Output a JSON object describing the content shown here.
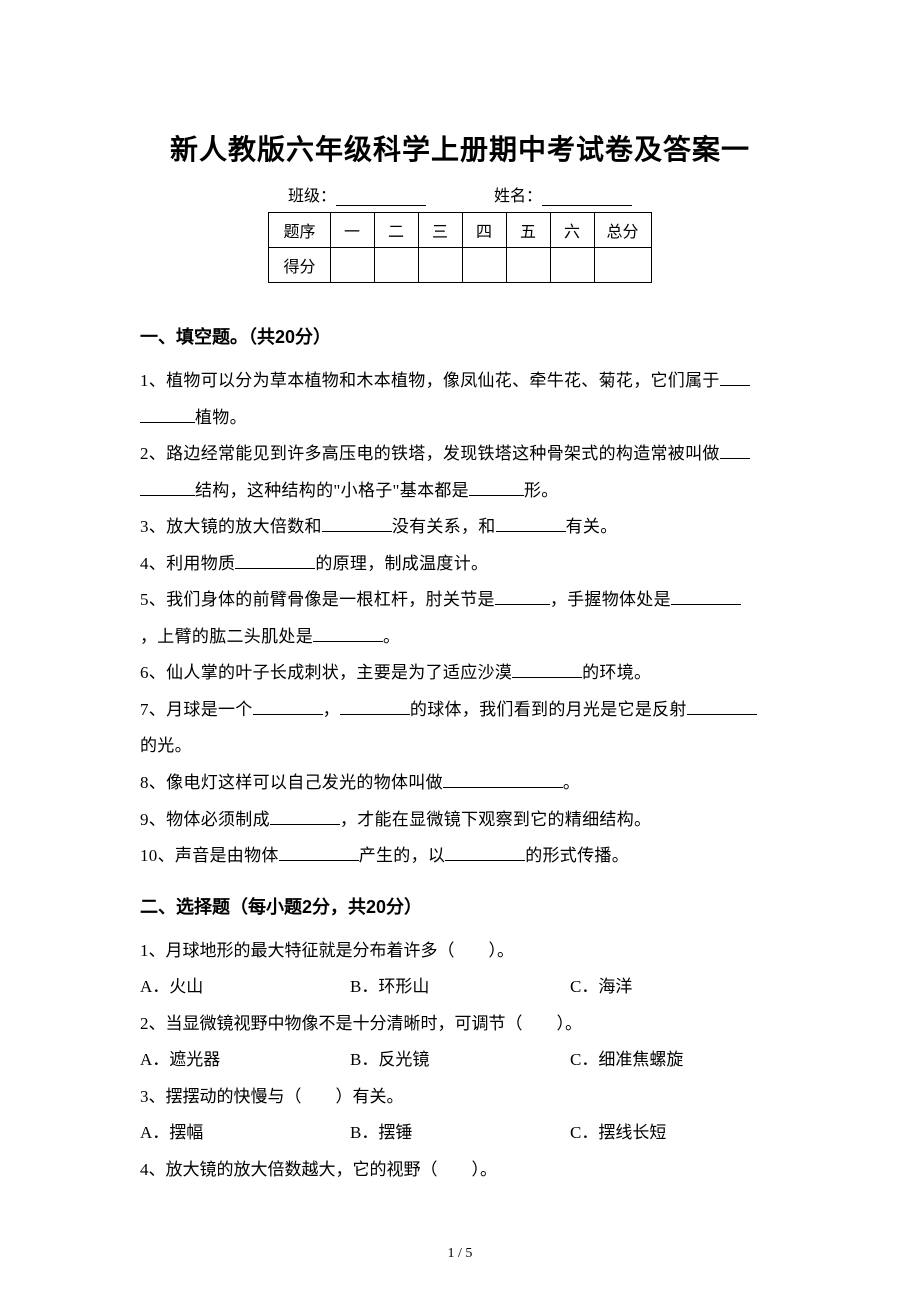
{
  "title": "新人教版六年级科学上册期中考试卷及答案一",
  "meta": {
    "class_label": "班级：",
    "name_label": "姓名："
  },
  "score_table": {
    "headers": [
      "题序",
      "一",
      "二",
      "三",
      "四",
      "五",
      "六",
      "总分"
    ],
    "row_label": "得分"
  },
  "section1": {
    "heading": "一、填空题。（共20分）",
    "q1a": "1、植物可以分为草本植物和木本植物，像凤仙花、牵牛花、菊花，它们属于",
    "q1b": "植物。",
    "q2a": "2、路边经常能见到许多高压电的铁塔，发现铁塔这种骨架式的构造常被叫做",
    "q2b": "结构，这种结构的\"小格子\"基本都是",
    "q2c": "形。",
    "q3a": "3、放大镜的放大倍数和",
    "q3b": "没有关系，和",
    "q3c": "有关。",
    "q4a": "4、利用物质",
    "q4b": "的原理，制成温度计。",
    "q5a": "5、我们身体的前臂骨像是一根杠杆，肘关节是",
    "q5b": "，手握物体处是",
    "q5c": "，上臂的肱二头肌处是",
    "q5d": "。",
    "q6a": "6、仙人掌的叶子长成刺状，主要是为了适应沙漠",
    "q6b": "的环境。",
    "q7a": "7、月球是一个",
    "q7b": "，",
    "q7c": "的球体，我们看到的月光是它是反射",
    "q7d": "的光。",
    "q8a": "8、像电灯这样可以自己发光的物体叫做",
    "q8b": "。",
    "q9a": "9、物体必须制成",
    "q9b": "，才能在显微镜下观察到它的精细结构。",
    "q10a": "10、声音是由物体",
    "q10b": "产生的，以",
    "q10c": "的形式传播。"
  },
  "section2": {
    "heading": "二、选择题（每小题2分，共20分）",
    "q1": "1、月球地形的最大特征就是分布着许多（　　）。",
    "q1_opts": [
      "A．火山",
      "B．环形山",
      "C．海洋"
    ],
    "q2": "2、当显微镜视野中物像不是十分清晰时，可调节（　　）。",
    "q2_opts": [
      "A．遮光器",
      "B．反光镜",
      "C．细准焦螺旋"
    ],
    "q3": "3、摆摆动的快慢与（　　）有关。",
    "q3_opts": [
      "A．摆幅",
      "B．摆锤",
      "C．摆线长短"
    ],
    "q4": "4、放大镜的放大倍数越大，它的视野（　　）。"
  },
  "pagenum": "1 / 5"
}
